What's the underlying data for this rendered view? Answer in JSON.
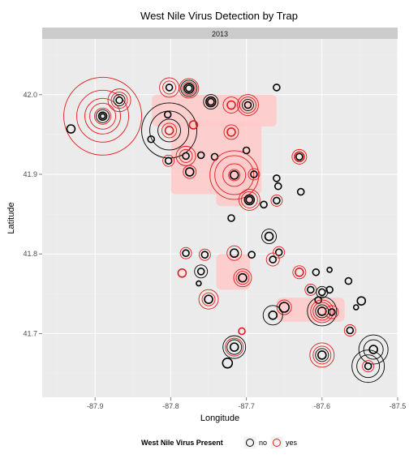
{
  "chart_data": {
    "type": "scatter",
    "title": "West Nile Virus Detection by Trap",
    "facet_label": "2013",
    "xlabel": "Longitude",
    "ylabel": "Latitude",
    "xlim": [
      -87.97,
      -87.5
    ],
    "ylim": [
      41.62,
      42.07
    ],
    "x_ticks": [
      -87.9,
      -87.8,
      -87.7,
      -87.6,
      -87.5
    ],
    "x_tick_labels": [
      "-87.9",
      "-87.8",
      "-87.7",
      "-87.6",
      "-87.5"
    ],
    "y_ticks": [
      41.7,
      41.8,
      41.9,
      42.0
    ],
    "y_tick_labels": [
      "41.7",
      "41.8",
      "41.9",
      "42.0"
    ],
    "grid": true,
    "legend": {
      "title": "West Nile Virus Present",
      "position": "bottom",
      "entries": [
        {
          "label": "no",
          "color": "#000000"
        },
        {
          "label": "yes",
          "color": "#e41a1c"
        }
      ]
    },
    "colors": {
      "no": "#000000",
      "yes": "#e41a1c",
      "density": "#ffc9c9",
      "panel": "#ebebeb",
      "strip": "#cccccc"
    },
    "density_areas": [
      {
        "x": [
          -87.825,
          -87.66
        ],
        "y": [
          41.96,
          42.0
        ]
      },
      {
        "x": [
          -87.8,
          -87.68
        ],
        "y": [
          41.875,
          41.965
        ]
      },
      {
        "x": [
          -87.74,
          -87.69
        ],
        "y": [
          41.86,
          41.915
        ]
      },
      {
        "x": [
          -87.74,
          -87.695
        ],
        "y": [
          41.755,
          41.8
        ]
      },
      {
        "x": [
          -87.66,
          -87.57
        ],
        "y": [
          41.715,
          41.745
        ]
      }
    ],
    "traps": [
      {
        "lon": -87.89,
        "lat": 41.973,
        "no": [
          3,
          5,
          8
        ],
        "yes": [
          10,
          16,
          22,
          32,
          48
        ]
      },
      {
        "lon": -87.868,
        "lat": 41.993,
        "no": [
          4,
          7
        ],
        "yes": [
          10,
          14
        ]
      },
      {
        "lon": -87.932,
        "lat": 41.957,
        "no": [
          5
        ],
        "yes": []
      },
      {
        "lon": -87.802,
        "lat": 42.009,
        "no": [
          4
        ],
        "yes": [
          8,
          12
        ]
      },
      {
        "lon": -87.776,
        "lat": 42.008,
        "no": [
          4,
          6,
          10
        ],
        "yes": [
          8,
          12
        ]
      },
      {
        "lon": -87.747,
        "lat": 41.991,
        "no": [
          4,
          6,
          9
        ],
        "yes": []
      },
      {
        "lon": -87.72,
        "lat": 41.987,
        "no": [],
        "yes": [
          5,
          10
        ]
      },
      {
        "lon": -87.698,
        "lat": 41.987,
        "no": [
          4,
          7
        ],
        "yes": [
          10,
          13
        ]
      },
      {
        "lon": -87.66,
        "lat": 42.009,
        "no": [
          4
        ],
        "yes": []
      },
      {
        "lon": -87.802,
        "lat": 41.955,
        "no": [
          14,
          24,
          34
        ],
        "yes": [
          5,
          9
        ]
      },
      {
        "lon": -87.804,
        "lat": 41.975,
        "no": [
          4
        ],
        "yes": []
      },
      {
        "lon": -87.77,
        "lat": 41.962,
        "no": [],
        "yes": [
          5
        ]
      },
      {
        "lon": -87.826,
        "lat": 41.944,
        "no": [
          4
        ],
        "yes": []
      },
      {
        "lon": -87.72,
        "lat": 41.953,
        "no": [],
        "yes": [
          5,
          9
        ]
      },
      {
        "lon": -87.78,
        "lat": 41.923,
        "no": [
          4
        ],
        "yes": [
          8,
          12
        ]
      },
      {
        "lon": -87.803,
        "lat": 41.917,
        "no": [
          4
        ],
        "yes": [
          7
        ]
      },
      {
        "lon": -87.76,
        "lat": 41.924,
        "no": [
          4
        ],
        "yes": []
      },
      {
        "lon": -87.742,
        "lat": 41.922,
        "no": [
          4
        ],
        "yes": []
      },
      {
        "lon": -87.775,
        "lat": 41.903,
        "no": [
          5
        ],
        "yes": [
          8
        ]
      },
      {
        "lon": -87.716,
        "lat": 41.899,
        "no": [
          5
        ],
        "yes": [
          7,
          14,
          24,
          30
        ]
      },
      {
        "lon": -87.7,
        "lat": 41.93,
        "no": [
          4
        ],
        "yes": []
      },
      {
        "lon": -87.69,
        "lat": 41.9,
        "no": [
          4
        ],
        "yes": [
          7
        ]
      },
      {
        "lon": -87.63,
        "lat": 41.922,
        "no": [
          4
        ],
        "yes": [
          6,
          9
        ]
      },
      {
        "lon": -87.66,
        "lat": 41.895,
        "no": [
          4
        ],
        "yes": []
      },
      {
        "lon": -87.658,
        "lat": 41.885,
        "no": [
          4
        ],
        "yes": []
      },
      {
        "lon": -87.696,
        "lat": 41.868,
        "no": [
          4,
          6
        ],
        "yes": [
          10,
          13
        ]
      },
      {
        "lon": -87.66,
        "lat": 41.867,
        "no": [
          4
        ],
        "yes": [
          7
        ]
      },
      {
        "lon": -87.677,
        "lat": 41.862,
        "no": [
          4
        ],
        "yes": []
      },
      {
        "lon": -87.628,
        "lat": 41.878,
        "no": [
          4
        ],
        "yes": []
      },
      {
        "lon": -87.72,
        "lat": 41.845,
        "no": [
          4
        ],
        "yes": []
      },
      {
        "lon": -87.67,
        "lat": 41.822,
        "no": [
          5,
          9
        ],
        "yes": []
      },
      {
        "lon": -87.78,
        "lat": 41.801,
        "no": [
          4
        ],
        "yes": [
          7
        ]
      },
      {
        "lon": -87.755,
        "lat": 41.799,
        "no": [
          4
        ],
        "yes": [
          7
        ]
      },
      {
        "lon": -87.716,
        "lat": 41.801,
        "no": [
          5
        ],
        "yes": [
          9
        ]
      },
      {
        "lon": -87.693,
        "lat": 41.799,
        "no": [
          4
        ],
        "yes": []
      },
      {
        "lon": -87.657,
        "lat": 41.802,
        "no": [
          4
        ],
        "yes": [
          7
        ]
      },
      {
        "lon": -87.665,
        "lat": 41.793,
        "no": [
          4
        ],
        "yes": [
          8
        ]
      },
      {
        "lon": -87.76,
        "lat": 41.778,
        "no": [
          4,
          8
        ],
        "yes": []
      },
      {
        "lon": -87.785,
        "lat": 41.776,
        "no": [],
        "yes": [
          5
        ]
      },
      {
        "lon": -87.705,
        "lat": 41.77,
        "no": [
          5
        ],
        "yes": [
          8,
          11
        ]
      },
      {
        "lon": -87.63,
        "lat": 41.777,
        "no": [],
        "yes": [
          5,
          8
        ]
      },
      {
        "lon": -87.608,
        "lat": 41.777,
        "no": [
          4
        ],
        "yes": []
      },
      {
        "lon": -87.59,
        "lat": 41.78,
        "no": [
          3
        ],
        "yes": []
      },
      {
        "lon": -87.565,
        "lat": 41.766,
        "no": [
          4
        ],
        "yes": []
      },
      {
        "lon": -87.763,
        "lat": 41.763,
        "no": [
          3
        ],
        "yes": []
      },
      {
        "lon": -87.75,
        "lat": 41.743,
        "no": [
          5
        ],
        "yes": [
          8,
          12
        ]
      },
      {
        "lon": -87.615,
        "lat": 41.755,
        "no": [
          4
        ],
        "yes": [
          7
        ]
      },
      {
        "lon": -87.6,
        "lat": 41.752,
        "no": [
          4,
          7
        ],
        "yes": []
      },
      {
        "lon": -87.605,
        "lat": 41.742,
        "no": [
          4
        ],
        "yes": []
      },
      {
        "lon": -87.59,
        "lat": 41.755,
        "no": [
          4
        ],
        "yes": []
      },
      {
        "lon": -87.65,
        "lat": 41.733,
        "no": [
          6
        ],
        "yes": [
          9
        ]
      },
      {
        "lon": -87.6,
        "lat": 41.728,
        "no": [
          5,
          8,
          18
        ],
        "yes": [
          11,
          14
        ]
      },
      {
        "lon": -87.587,
        "lat": 41.727,
        "no": [
          4
        ],
        "yes": [
          8
        ]
      },
      {
        "lon": -87.548,
        "lat": 41.741,
        "no": [
          5
        ],
        "yes": []
      },
      {
        "lon": -87.555,
        "lat": 41.733,
        "no": [
          3
        ],
        "yes": []
      },
      {
        "lon": -87.665,
        "lat": 41.723,
        "no": [
          5,
          12
        ],
        "yes": []
      },
      {
        "lon": -87.563,
        "lat": 41.704,
        "no": [
          4
        ],
        "yes": [
          7
        ]
      },
      {
        "lon": -87.716,
        "lat": 41.683,
        "no": [
          5,
          9,
          14
        ],
        "yes": [
          11
        ]
      },
      {
        "lon": -87.706,
        "lat": 41.703,
        "no": [],
        "yes": [
          4
        ]
      },
      {
        "lon": -87.6,
        "lat": 41.673,
        "no": [
          5,
          8
        ],
        "yes": [
          11,
          15
        ]
      },
      {
        "lon": -87.532,
        "lat": 41.68,
        "no": [
          5,
          12,
          18
        ],
        "yes": []
      },
      {
        "lon": -87.539,
        "lat": 41.659,
        "no": [
          4,
          14,
          20
        ],
        "yes": [
          7
        ]
      },
      {
        "lon": -87.725,
        "lat": 41.663,
        "no": [
          6
        ],
        "yes": []
      }
    ]
  }
}
